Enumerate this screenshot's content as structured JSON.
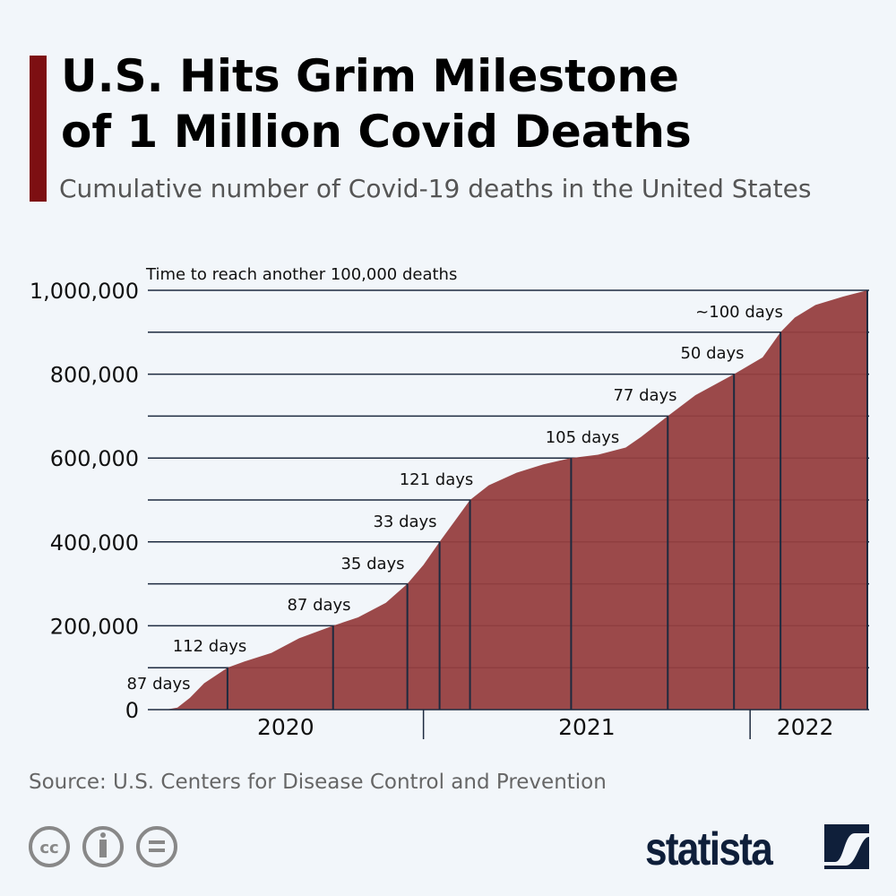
{
  "title_line1": "U.S. Hits Grim Milestone",
  "title_line2": "of 1 Million Covid Deaths",
  "subtitle": "Cumulative number of Covid-19 deaths in the United States",
  "source": "Source: U.S. Centers for Disease Control and Prevention",
  "logo": "statista",
  "icons": [
    "cc-icon",
    "attribution-icon",
    "no-derivatives-icon",
    "statista-logo-icon"
  ],
  "colors": {
    "accent": "#7d0f12",
    "fill": "#963f40",
    "lines": "#1d2a3f"
  },
  "chart_data": {
    "type": "area",
    "title": "U.S. Hits Grim Milestone of 1 Million Covid Deaths",
    "annotation": "Time to reach another 100,000 deaths",
    "ylim": [
      0,
      1000000
    ],
    "yticks": [
      0,
      200000,
      400000,
      600000,
      800000,
      1000000
    ],
    "ytick_labels": [
      "0",
      "200,000",
      "400,000",
      "600,000",
      "800,000",
      "1,000,000"
    ],
    "xlim": [
      "2020-02-28",
      "2022-05-14"
    ],
    "xtick_labels": [
      "2020",
      "2021",
      "2022"
    ],
    "series": [
      {
        "x": [
          "2020-02-29",
          "2020-03-20",
          "2020-04-01",
          "2020-04-15",
          "2020-05-01",
          "2020-05-27",
          "2020-06-15",
          "2020-07-15",
          "2020-08-15",
          "2020-09-22",
          "2020-10-20",
          "2020-11-20",
          "2020-12-14",
          "2021-01-01",
          "2021-01-19",
          "2021-02-22",
          "2021-03-15",
          "2021-04-15",
          "2021-05-15",
          "2021-06-15",
          "2021-07-15",
          "2021-08-15",
          "2021-09-01",
          "2021-10-01",
          "2021-11-01",
          "2021-12-14",
          "2022-01-15",
          "2022-02-04",
          "2022-02-20",
          "2022-03-15",
          "2022-04-15",
          "2022-05-12"
        ],
        "y": [
          0,
          300,
          5000,
          28000,
          63000,
          100000,
          115000,
          135000,
          170000,
          200000,
          220000,
          255000,
          300000,
          345000,
          400000,
          500000,
          535000,
          565000,
          585000,
          600000,
          608000,
          625000,
          650000,
          700000,
          750000,
          800000,
          840000,
          900000,
          935000,
          965000,
          985000,
          1000000
        ]
      }
    ],
    "milestones": [
      {
        "value": 100000,
        "date": "2020-05-27",
        "label": "87 days"
      },
      {
        "value": 200000,
        "date": "2020-09-22",
        "label": "112 days"
      },
      {
        "value": 300000,
        "date": "2020-12-14",
        "label": "87 days"
      },
      {
        "value": 400000,
        "date": "2021-01-19",
        "label": "35 days"
      },
      {
        "value": 500000,
        "date": "2021-02-22",
        "label": "33 days"
      },
      {
        "value": 600000,
        "date": "2021-06-15",
        "label": "121 days"
      },
      {
        "value": 700000,
        "date": "2021-10-01",
        "label": "105 days"
      },
      {
        "value": 800000,
        "date": "2021-12-14",
        "label": "77 days"
      },
      {
        "value": 900000,
        "date": "2022-02-04",
        "label": "50 days"
      },
      {
        "value": 1000000,
        "date": "2022-05-12",
        "label": "~100 days"
      }
    ]
  }
}
